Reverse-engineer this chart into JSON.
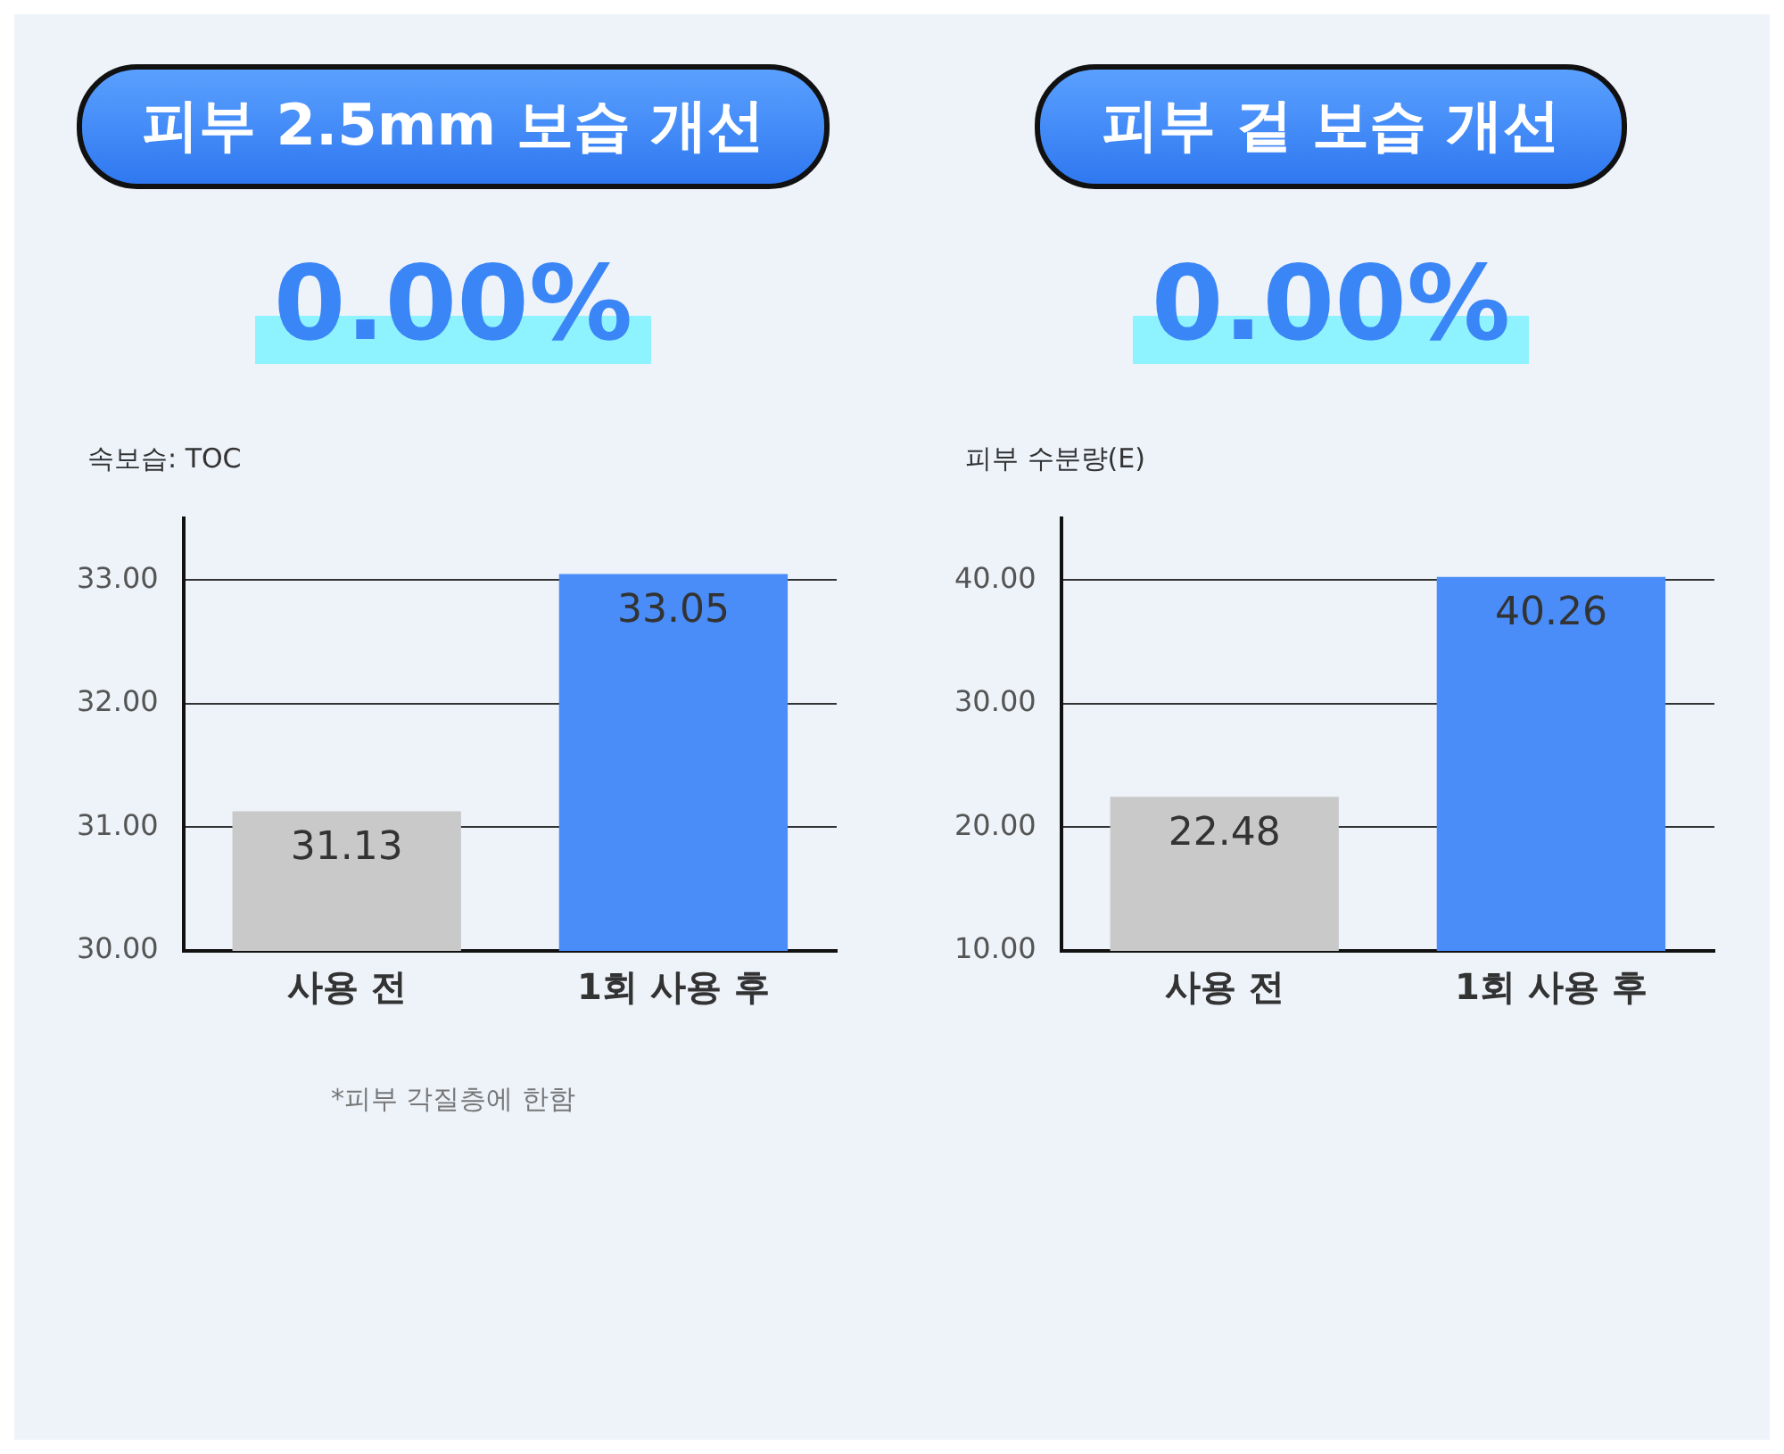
{
  "chart_data": [
    {
      "type": "bar",
      "title": "피부 2.5mm 보습 개선",
      "subtitle": "0.00%",
      "ylabel": "속보습: TOC",
      "categories": [
        "사용 전",
        "1회 사용 후"
      ],
      "values": [
        31.13,
        33.05
      ],
      "colors": [
        "#c9c9c9",
        "#4a8df8"
      ],
      "ylim": [
        30,
        33.5
      ],
      "yticks": [
        {
          "value": 30,
          "label": "30.00"
        },
        {
          "value": 31,
          "label": "31.00"
        },
        {
          "value": 32,
          "label": "32.00"
        },
        {
          "value": 33,
          "label": "33.00"
        }
      ],
      "grid": "y",
      "data_labels": true,
      "annotations": [
        "*피부 각질층에 한함"
      ]
    },
    {
      "type": "bar",
      "title": "피부 겉 보습 개선",
      "subtitle": "0.00%",
      "ylabel": "피부 수분량(E)",
      "categories": [
        "사용 전",
        "1회 사용 후"
      ],
      "values": [
        22.48,
        40.26
      ],
      "colors": [
        "#c9c9c9",
        "#4a8df8"
      ],
      "ylim": [
        10,
        45
      ],
      "yticks": [
        {
          "value": 10,
          "label": "10.00"
        },
        {
          "value": 20,
          "label": "20.00"
        },
        {
          "value": 30,
          "label": "30.00"
        },
        {
          "value": 40,
          "label": "40.00"
        }
      ],
      "grid": "y",
      "data_labels": true
    }
  ]
}
